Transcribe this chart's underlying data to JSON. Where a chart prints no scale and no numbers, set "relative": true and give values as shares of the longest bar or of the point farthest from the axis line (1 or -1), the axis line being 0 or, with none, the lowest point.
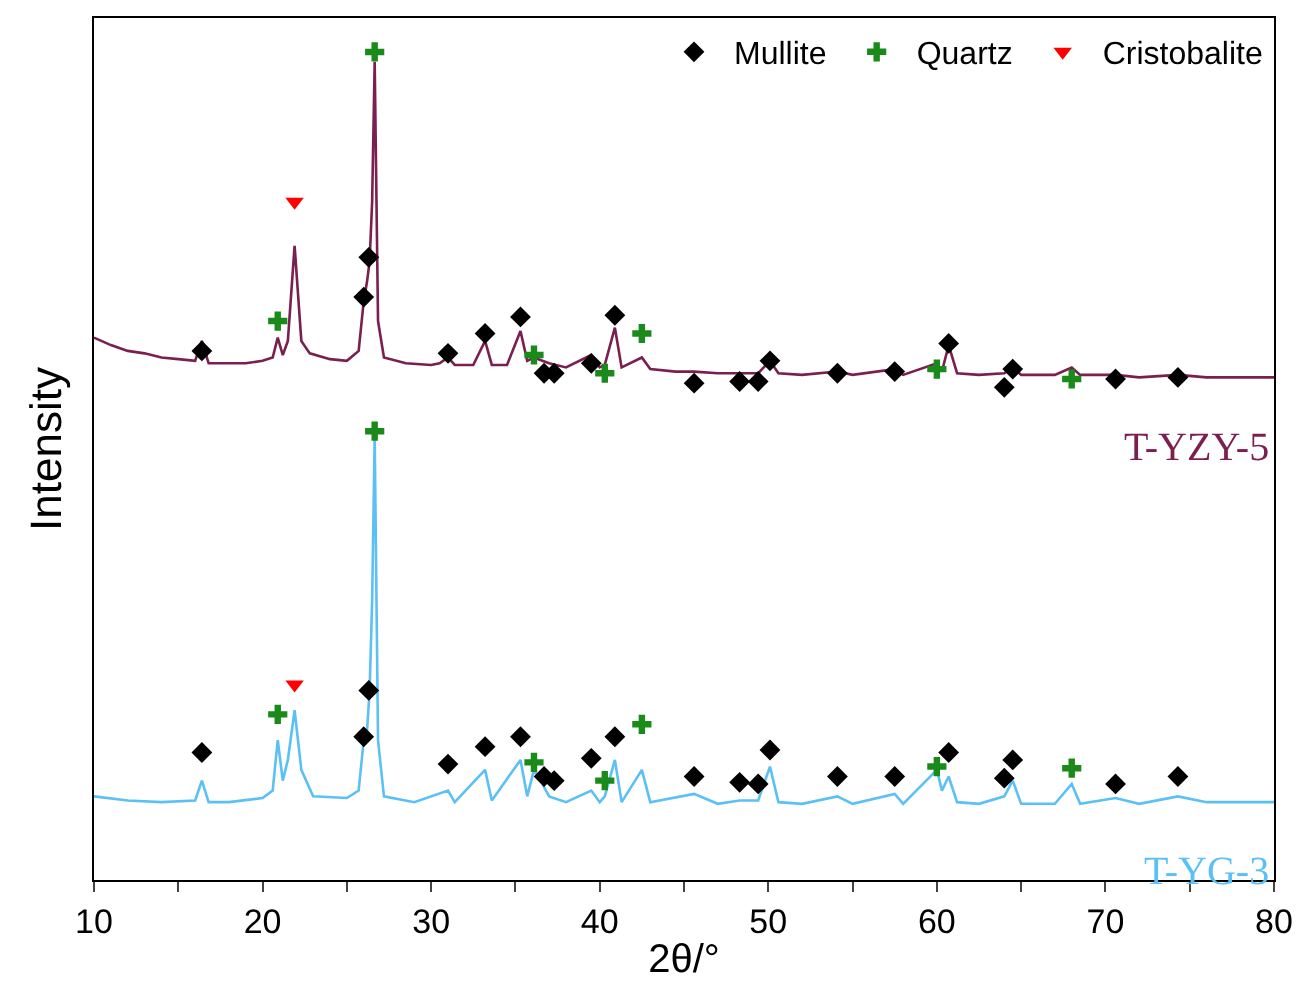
{
  "chart_data": {
    "type": "line",
    "relative": true,
    "xlabel": "2θ/°",
    "ylabel": "Intensity",
    "xlim": [
      10,
      80
    ],
    "xticks": [
      10,
      {
        "value": 15,
        "label": null
      },
      20,
      {
        "value": 25,
        "label": null
      },
      30,
      {
        "value": 35,
        "label": null
      },
      40,
      {
        "value": 45,
        "label": null
      },
      50,
      {
        "value": 55,
        "label": null
      },
      60,
      {
        "value": 65,
        "label": null
      },
      70,
      {
        "value": 75,
        "label": null
      },
      80
    ],
    "legend": "top right",
    "series": [
      {
        "name": "T-YZY-5",
        "color": "#7a1f4e",
        "x": [
          10,
          11,
          12,
          13,
          14,
          15,
          16,
          16.4,
          16.8,
          18,
          19,
          20,
          20.6,
          20.9,
          21.2,
          21.5,
          21.9,
          22.3,
          22.8,
          24,
          25,
          25.7,
          26.0,
          26.2,
          26.35,
          26.5,
          26.65,
          26.85,
          27.2,
          28.5,
          30,
          30.5,
          31.0,
          31.4,
          32.5,
          33.2,
          33.6,
          34.5,
          35.3,
          35.7,
          36.1,
          36.6,
          37.0,
          38,
          39.5,
          40.0,
          40.3,
          40.9,
          41.3,
          42.5,
          43,
          44.5,
          45.6,
          47,
          48.3,
          49.4,
          50.1,
          50.6,
          52,
          54.1,
          55,
          57.5,
          58,
          60.0,
          60.3,
          60.7,
          61.2,
          62.5,
          64.0,
          64.5,
          65,
          67,
          68.0,
          68.5,
          70.6,
          72,
          74.3,
          76,
          78,
          80
        ],
        "values": [
          0.655,
          0.646,
          0.639,
          0.636,
          0.631,
          0.629,
          0.627,
          0.651,
          0.624,
          0.624,
          0.624,
          0.627,
          0.631,
          0.655,
          0.634,
          0.651,
          0.766,
          0.651,
          0.636,
          0.629,
          0.627,
          0.639,
          0.699,
          0.723,
          0.747,
          0.819,
          0.988,
          0.675,
          0.631,
          0.624,
          0.622,
          0.624,
          0.631,
          0.622,
          0.622,
          0.651,
          0.622,
          0.622,
          0.663,
          0.627,
          0.631,
          0.627,
          0.624,
          0.619,
          0.634,
          0.619,
          0.622,
          0.667,
          0.619,
          0.631,
          0.617,
          0.614,
          0.614,
          0.612,
          0.612,
          0.612,
          0.627,
          0.612,
          0.61,
          0.614,
          0.61,
          0.617,
          0.61,
          0.624,
          0.614,
          0.646,
          0.612,
          0.61,
          0.612,
          0.619,
          0.61,
          0.61,
          0.619,
          0.61,
          0.61,
          0.607,
          0.61,
          0.607,
          0.607,
          0.607
        ]
      },
      {
        "name": "T-YG-3",
        "color": "#5bc0f5",
        "x": [
          10,
          12,
          14,
          16,
          16.4,
          16.8,
          18,
          20,
          20.6,
          20.9,
          21.2,
          21.5,
          21.9,
          22.3,
          23,
          25,
          25.7,
          26.0,
          26.2,
          26.35,
          26.5,
          26.65,
          26.85,
          27.2,
          29,
          31.0,
          31.4,
          33.2,
          33.6,
          35.3,
          35.7,
          36.1,
          36.6,
          37.0,
          38,
          39.5,
          40.0,
          40.3,
          40.9,
          41.3,
          42.5,
          43,
          45.6,
          47,
          48.3,
          49.4,
          50.1,
          50.6,
          52,
          54.1,
          55,
          57.5,
          58,
          60.0,
          60.3,
          60.7,
          61.2,
          62.5,
          64.0,
          64.5,
          65,
          67,
          68.0,
          68.5,
          70.6,
          72,
          74.3,
          76,
          78,
          80
        ],
        "values": [
          0.101,
          0.096,
          0.094,
          0.096,
          0.12,
          0.094,
          0.094,
          0.099,
          0.108,
          0.169,
          0.12,
          0.145,
          0.205,
          0.133,
          0.101,
          0.099,
          0.108,
          0.169,
          0.181,
          0.229,
          0.337,
          0.535,
          0.169,
          0.101,
          0.094,
          0.108,
          0.094,
          0.133,
          0.096,
          0.145,
          0.101,
          0.133,
          0.116,
          0.101,
          0.094,
          0.108,
          0.094,
          0.101,
          0.145,
          0.094,
          0.133,
          0.094,
          0.104,
          0.092,
          0.096,
          0.096,
          0.137,
          0.094,
          0.092,
          0.101,
          0.092,
          0.104,
          0.092,
          0.133,
          0.108,
          0.125,
          0.094,
          0.092,
          0.101,
          0.12,
          0.092,
          0.092,
          0.116,
          0.092,
          0.099,
          0.092,
          0.101,
          0.094,
          0.094,
          0.094
        ]
      },
      {
        "name": "Mullite",
        "color": "#000000",
        "type": "scatter",
        "marker": "diamond",
        "x": [
          16.4,
          26.0,
          26.3,
          31.0,
          33.2,
          35.3,
          36.7,
          37.3,
          39.5,
          40.9,
          45.6,
          48.3,
          49.4,
          50.1,
          54.1,
          57.5,
          60.7,
          64.0,
          64.5,
          70.6,
          74.3,
          16.4,
          26.0,
          26.3,
          31.0,
          33.2,
          35.3,
          36.7,
          37.3,
          39.5,
          40.9,
          45.6,
          48.3,
          49.4,
          50.1,
          54.1,
          57.5,
          60.7,
          64.0,
          64.5,
          70.6,
          74.3
        ],
        "values": [
          0.639,
          0.704,
          0.752,
          0.636,
          0.66,
          0.68,
          0.612,
          0.612,
          0.624,
          0.682,
          0.6,
          0.602,
          0.602,
          0.627,
          0.612,
          0.614,
          0.648,
          0.595,
          0.617,
          0.605,
          0.607,
          0.154,
          0.173,
          0.229,
          0.14,
          0.161,
          0.173,
          0.125,
          0.12,
          0.147,
          0.173,
          0.125,
          0.118,
          0.116,
          0.157,
          0.125,
          0.125,
          0.154,
          0.123,
          0.145,
          0.116,
          0.125
        ]
      },
      {
        "name": "Quartz",
        "color": "#1a8a1a",
        "type": "scatter",
        "marker": "cross",
        "x": [
          20.9,
          26.65,
          36.1,
          40.3,
          42.5,
          60.0,
          68.0,
          20.9,
          26.65,
          36.1,
          40.3,
          42.5,
          60.0,
          68.0
        ],
        "values": [
          0.675,
          1.0,
          0.634,
          0.612,
          0.66,
          0.617,
          0.605,
          0.2,
          0.542,
          0.142,
          0.12,
          0.188,
          0.137,
          0.135
        ]
      },
      {
        "name": "Cristobalite",
        "color": "#ff0000",
        "type": "scatter",
        "marker": "triangle",
        "x": [
          21.9,
          21.9
        ],
        "values": [
          0.819,
          0.236
        ]
      }
    ]
  }
}
